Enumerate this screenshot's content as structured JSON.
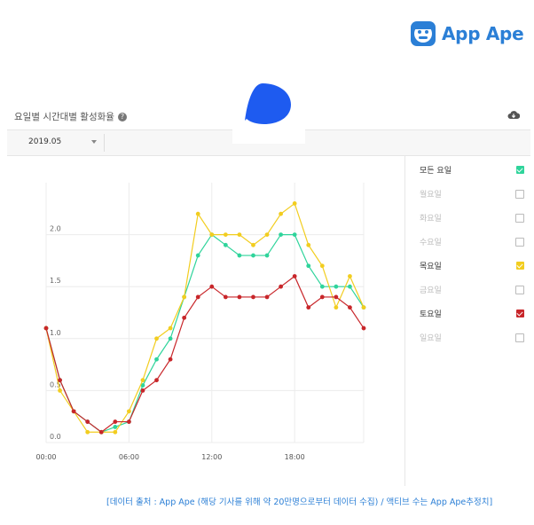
{
  "brand": {
    "name": "App Ape",
    "icon": "app-ape-monkey-icon",
    "color": "#2b7fd6"
  },
  "panel": {
    "title": "요일별 시간대별 활성화율",
    "help_icon": "question-icon",
    "download_icon": "cloud-download-icon",
    "month": "2019.05"
  },
  "chart_data": {
    "type": "line",
    "x": [
      0,
      1,
      2,
      3,
      4,
      5,
      6,
      7,
      8,
      9,
      10,
      11,
      12,
      13,
      14,
      15,
      16,
      17,
      18,
      19,
      20,
      21,
      22,
      23
    ],
    "x_ticks": [
      "00:00",
      "06:00",
      "12:00",
      "18:00"
    ],
    "y_ticks": [
      "0.0",
      "0.5",
      "1.0",
      "1.5",
      "2.0"
    ],
    "ylim": [
      0,
      2.5
    ],
    "grid": true,
    "legend_placement": "right",
    "series": [
      {
        "name": "모든 요일",
        "color": "#2fd49b",
        "values": [
          1.1,
          0.6,
          0.3,
          0.2,
          0.1,
          0.15,
          0.2,
          0.55,
          0.8,
          1.0,
          1.4,
          1.8,
          2.0,
          1.9,
          1.8,
          1.8,
          1.8,
          2.0,
          2.0,
          1.7,
          1.5,
          1.5,
          1.5,
          1.3
        ]
      },
      {
        "name": "목요일",
        "color": "#f2cd1f",
        "values": [
          1.1,
          0.5,
          0.3,
          0.1,
          0.1,
          0.1,
          0.3,
          0.6,
          1.0,
          1.1,
          1.4,
          2.2,
          2.0,
          2.0,
          2.0,
          1.9,
          2.0,
          2.2,
          2.3,
          1.9,
          1.7,
          1.3,
          1.6,
          1.3
        ]
      },
      {
        "name": "토요일",
        "color": "#c8262a",
        "values": [
          1.1,
          0.6,
          0.3,
          0.2,
          0.1,
          0.2,
          0.2,
          0.5,
          0.6,
          0.8,
          1.2,
          1.4,
          1.5,
          1.4,
          1.4,
          1.4,
          1.4,
          1.5,
          1.6,
          1.3,
          1.4,
          1.4,
          1.3,
          1.1
        ]
      }
    ]
  },
  "legend": [
    {
      "label": "모든 요일",
      "checked": true,
      "color": "#2fd49b"
    },
    {
      "label": "월요일",
      "checked": false,
      "color": "#cccccc"
    },
    {
      "label": "화요일",
      "checked": false,
      "color": "#cccccc"
    },
    {
      "label": "수요일",
      "checked": false,
      "color": "#cccccc"
    },
    {
      "label": "목요일",
      "checked": true,
      "color": "#f2cd1f"
    },
    {
      "label": "금요일",
      "checked": false,
      "color": "#cccccc"
    },
    {
      "label": "토요일",
      "checked": true,
      "color": "#c8262a"
    },
    {
      "label": "일요일",
      "checked": false,
      "color": "#cccccc"
    }
  ],
  "footnote": "[데이터 출처 : App Ape (해당 기사를 위해 약 20만명으로부터 데이터 수집) / 액티브 수는 App Ape추정치]"
}
